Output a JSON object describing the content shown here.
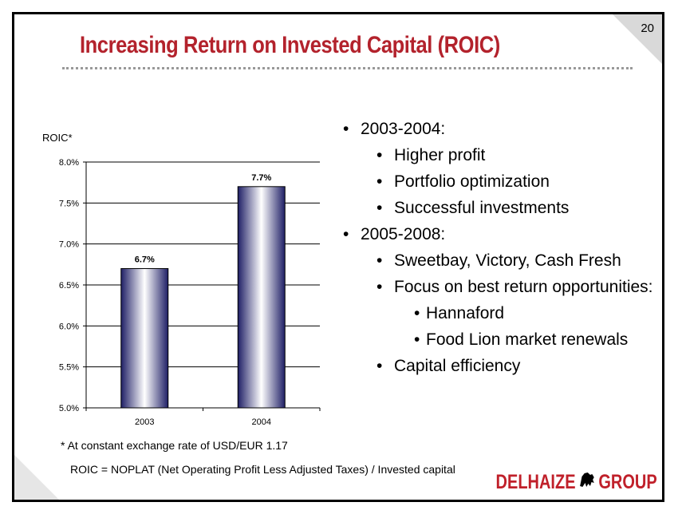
{
  "slide": {
    "page_number": "20",
    "title": "Increasing Return on Invested Capital (ROIC)",
    "title_color": "#b3222c"
  },
  "chart_data": {
    "type": "bar",
    "ylabel": "ROIC*",
    "categories": [
      "2003",
      "2004"
    ],
    "values": [
      6.7,
      7.7
    ],
    "value_labels": [
      "6.7%",
      "7.7%"
    ],
    "ylim": [
      5.0,
      8.0
    ],
    "yticks": [
      "5.0%",
      "5.5%",
      "6.0%",
      "6.5%",
      "7.0%",
      "7.5%",
      "8.0%"
    ],
    "ytick_values": [
      5.0,
      5.5,
      6.0,
      6.5,
      7.0,
      7.5,
      8.0
    ],
    "grid": true,
    "bar_color": "#1f1f66"
  },
  "bullets": [
    {
      "level": 1,
      "text": "2003-2004:"
    },
    {
      "level": 2,
      "text": "Higher profit"
    },
    {
      "level": 2,
      "text": "Portfolio optimization"
    },
    {
      "level": 2,
      "text": "Successful investments"
    },
    {
      "level": 1,
      "text": "2005-2008:"
    },
    {
      "level": 2,
      "text": "Sweetbay, Victory, Cash Fresh"
    },
    {
      "level": 2,
      "text": "Focus on best return opportunities:"
    },
    {
      "level": 3,
      "text": "Hannaford"
    },
    {
      "level": 3,
      "text": "Food Lion market renewals"
    },
    {
      "level": 2,
      "text": "Capital efficiency"
    }
  ],
  "footnotes": {
    "exchange_rate": "* At constant exchange rate of USD/EUR 1.17",
    "definition": "ROIC = NOPLAT (Net Operating Profit Less Adjusted Taxes) / Invested capital"
  },
  "logo": {
    "left_text": "DELHAIZE",
    "right_text": "GROUP",
    "icon": "lion-icon",
    "color": "#c0202a"
  }
}
